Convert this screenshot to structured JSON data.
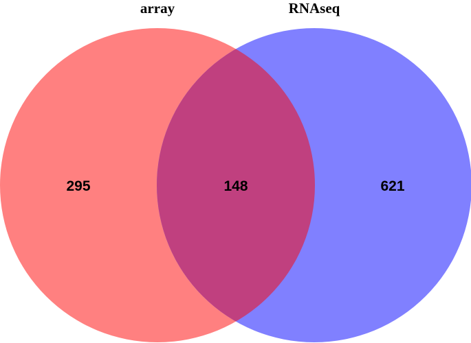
{
  "venn": {
    "sets": [
      {
        "name": "array",
        "color": "#ff8080",
        "only_count": "295"
      },
      {
        "name": "RNAseq",
        "color": "#8080ff",
        "only_count": "621"
      }
    ],
    "intersection": {
      "count": "148",
      "color": "#c0407f"
    }
  }
}
